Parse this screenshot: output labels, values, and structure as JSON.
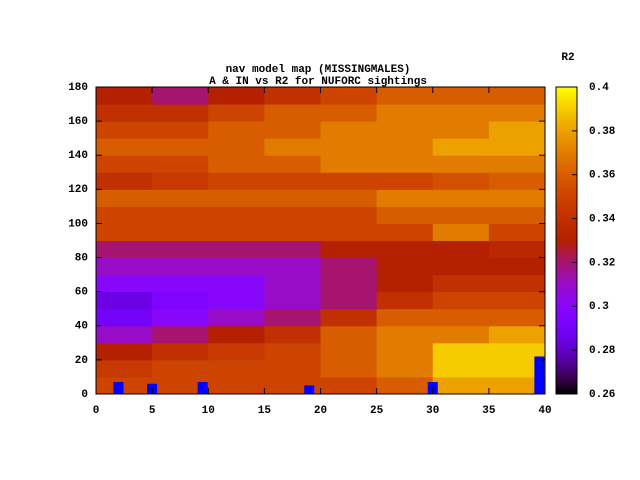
{
  "chart_data": {
    "type": "heatmap",
    "title": "nav model map (MISSINGMALES)",
    "subtitle": "A & IN vs R2 for NUFORC sightings",
    "colorbar_label": "R2",
    "x_bins": [
      0,
      5,
      10,
      15,
      20,
      25,
      30,
      35,
      40
    ],
    "y_bins": [
      0,
      10,
      20,
      30,
      40,
      50,
      60,
      70,
      80,
      90,
      100,
      110,
      120,
      130,
      140,
      150,
      160,
      170,
      180
    ],
    "z": [
      [
        0.35,
        0.35,
        0.35,
        0.35,
        0.35,
        0.36,
        0.38,
        0.38
      ],
      [
        0.345,
        0.35,
        0.35,
        0.35,
        0.36,
        0.37,
        0.39,
        0.39
      ],
      [
        0.33,
        0.34,
        0.345,
        0.35,
        0.36,
        0.37,
        0.39,
        0.39
      ],
      [
        0.31,
        0.32,
        0.33,
        0.34,
        0.36,
        0.37,
        0.37,
        0.38
      ],
      [
        0.29,
        0.3,
        0.31,
        0.32,
        0.34,
        0.36,
        0.36,
        0.36
      ],
      [
        0.285,
        0.295,
        0.3,
        0.31,
        0.32,
        0.34,
        0.35,
        0.35
      ],
      [
        0.3,
        0.3,
        0.3,
        0.31,
        0.32,
        0.33,
        0.34,
        0.34
      ],
      [
        0.31,
        0.31,
        0.31,
        0.31,
        0.32,
        0.33,
        0.33,
        0.33
      ],
      [
        0.32,
        0.32,
        0.32,
        0.32,
        0.33,
        0.33,
        0.33,
        0.335
      ],
      [
        0.35,
        0.35,
        0.35,
        0.35,
        0.35,
        0.35,
        0.37,
        0.35
      ],
      [
        0.35,
        0.35,
        0.35,
        0.35,
        0.35,
        0.36,
        0.36,
        0.36
      ],
      [
        0.36,
        0.36,
        0.36,
        0.36,
        0.36,
        0.37,
        0.37,
        0.37
      ],
      [
        0.34,
        0.345,
        0.35,
        0.35,
        0.35,
        0.35,
        0.355,
        0.36
      ],
      [
        0.35,
        0.35,
        0.36,
        0.36,
        0.37,
        0.37,
        0.37,
        0.37
      ],
      [
        0.36,
        0.36,
        0.36,
        0.37,
        0.37,
        0.37,
        0.38,
        0.38
      ],
      [
        0.35,
        0.35,
        0.36,
        0.36,
        0.37,
        0.37,
        0.37,
        0.38
      ],
      [
        0.34,
        0.34,
        0.35,
        0.36,
        0.36,
        0.37,
        0.37,
        0.37
      ],
      [
        0.33,
        0.32,
        0.33,
        0.34,
        0.35,
        0.36,
        0.36,
        0.36
      ]
    ],
    "markers": {
      "color": "#0000ff",
      "x": [
        2,
        5,
        9.5,
        19,
        30,
        39.5
      ],
      "values": [
        7,
        6,
        7,
        5,
        7,
        22
      ]
    },
    "xlim": [
      0,
      40
    ],
    "xticks": [
      0,
      5,
      10,
      15,
      20,
      25,
      30,
      35,
      40
    ],
    "ylim": [
      0,
      180
    ],
    "yticks": [
      0,
      20,
      40,
      60,
      80,
      100,
      120,
      140,
      160,
      180
    ],
    "zlim": [
      0.26,
      0.4
    ],
    "zticks": [
      0.26,
      0.28,
      0.3,
      0.32,
      0.34,
      0.36,
      0.38,
      0.4
    ]
  }
}
